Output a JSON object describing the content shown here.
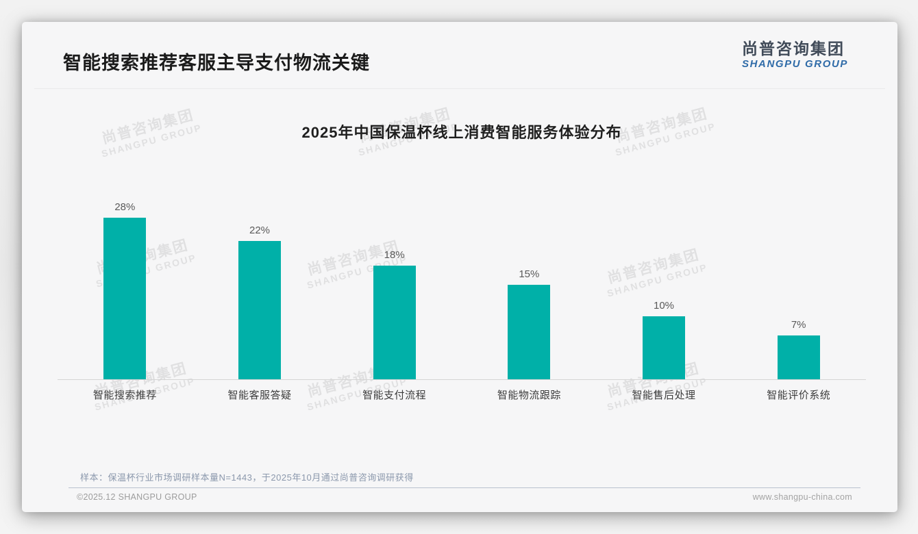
{
  "header": {
    "title": "智能搜索推荐客服主导支付物流关键",
    "logo_cn": "尚普咨询集团",
    "logo_en": "SHANGPU GROUP"
  },
  "watermark": {
    "cn": "尚普咨询集团",
    "en": "SHANGPU GROUP"
  },
  "chart_data": {
    "type": "bar",
    "title": "2025年中国保温杯线上消费智能服务体验分布",
    "categories": [
      "智能搜索推荐",
      "智能客服答疑",
      "智能支付流程",
      "智能物流跟踪",
      "智能售后处理",
      "智能评价系统"
    ],
    "values": [
      28,
      22,
      18,
      15,
      10,
      7
    ],
    "unit": "%",
    "value_labels": [
      "28%",
      "22%",
      "18%",
      "15%",
      "10%",
      "7%"
    ],
    "xlabel": "",
    "ylabel": "",
    "ylim": [
      0,
      30
    ],
    "grid": false,
    "legend": false,
    "bar_color": "#00b0a8"
  },
  "note": "样本：保温杯行业市场调研样本量N=1443，于2025年10月通过尚普咨询调研获得",
  "footer": {
    "copyright": "©2025.12 SHANGPU GROUP",
    "website": "www.shangpu-china.com"
  },
  "colors": {
    "accent_teal": "#00b0a8",
    "logo_blue": "#2f6ba8",
    "logo_dark": "#414b59",
    "note_gray_blue": "#8b98ac"
  }
}
